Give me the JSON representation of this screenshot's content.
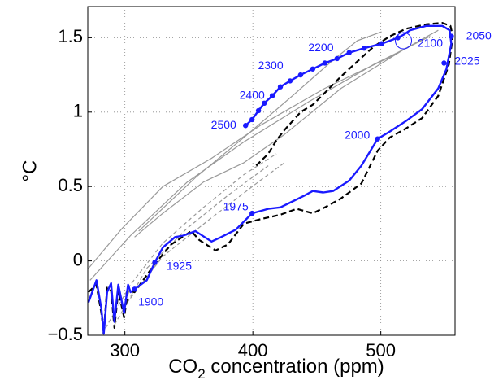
{
  "chart_data": {
    "type": "line",
    "xlabel": {
      "main": "CO",
      "sub": "2",
      "rest": " concentration (ppm)"
    },
    "ylabel": "°C",
    "xlim": [
      271,
      558
    ],
    "ylim": [
      -0.5,
      1.71
    ],
    "xticks": [
      300,
      400,
      500
    ],
    "yticks": [
      {
        "value": -0.5,
        "label": "−0.5"
      },
      0,
      0.5,
      1,
      1.5
    ],
    "grid": true,
    "series": [
      {
        "color": "#999999",
        "dash": false,
        "width": 1.2,
        "x": [
          271.5,
          298,
          329.7,
          367.7,
          405.7,
          456.3,
          507,
          544.9
        ],
        "y": [
          -0.05,
          0.22,
          0.5,
          0.69,
          0.91,
          1.16,
          1.37,
          1.55
        ]
      },
      {
        "color": "#999999",
        "dash": false,
        "width": 1.2,
        "x": [
          272.8,
          304.4,
          348.7,
          393,
          443.7,
          494.3,
          538.6
        ],
        "y": [
          -0.13,
          0.17,
          0.53,
          0.8,
          1.07,
          1.32,
          1.51
        ]
      },
      {
        "color": "#999999",
        "dash": false,
        "width": 1.2,
        "x": [
          310.8,
          355.1,
          393,
          431,
          462.7,
          481.6,
          500.6
        ],
        "y": [
          0.2,
          0.56,
          0.83,
          1.11,
          1.35,
          1.48,
          1.54
        ]
      },
      {
        "color": "#999999",
        "dash": false,
        "width": 1.2,
        "x": [
          307.6,
          329.7,
          361.4,
          393,
          424.7,
          469,
          519.6
        ],
        "y": [
          0.16,
          0.32,
          0.53,
          0.66,
          0.85,
          1.16,
          1.43
        ]
      },
      {
        "color": "#999999",
        "dash": true,
        "width": 1.2,
        "x": [
          282.3,
          304.4,
          329.7,
          361.4,
          393,
          418.4
        ],
        "y": [
          -0.49,
          -0.16,
          0.12,
          0.36,
          0.58,
          0.72
        ]
      },
      {
        "color": "#999999",
        "dash": true,
        "width": 1.2,
        "x": [
          291.8,
          317.1,
          348.7,
          380.4,
          412
        ],
        "y": [
          -0.43,
          -0.05,
          0.22,
          0.44,
          0.64
        ]
      },
      {
        "color": "#999999",
        "dash": true,
        "width": 1.2,
        "x": [
          298.1,
          329.7,
          367.7,
          405.7,
          424.7
        ],
        "y": [
          -0.32,
          0.03,
          0.29,
          0.54,
          0.66
        ]
      },
      {
        "color": "#000000",
        "dash": true,
        "width": 2.2,
        "x": [
          271.5,
          277.8,
          281.6,
          283.5,
          286.1,
          289.2,
          291.8,
          294.9,
          299.4,
          302.5,
          307.6,
          323.4,
          336.1,
          351.9,
          358.2,
          370.9,
          380.4,
          393.0,
          405.7,
          421.5,
          434.2,
          446.8,
          456.3,
          468.9,
          484.8,
          497.5,
          507.0,
          519.6,
          532.3,
          544.9,
          553.2,
          556.3,
          554.4,
          548.1,
          535.4,
          519.6,
          507.0,
          494.3,
          481.6,
          468.9,
          456.3,
          446.8,
          437.3,
          431.0,
          424.7,
          418.4,
          412.0,
          402.5
        ],
        "y": [
          -0.21,
          -0.16,
          -0.35,
          -0.48,
          -0.18,
          -0.2,
          -0.45,
          -0.2,
          -0.38,
          -0.2,
          -0.21,
          -0.02,
          0.11,
          0.2,
          0.14,
          0.07,
          0.11,
          0.25,
          0.28,
          0.31,
          0.35,
          0.32,
          0.36,
          0.42,
          0.52,
          0.74,
          0.83,
          0.89,
          0.96,
          1.11,
          1.32,
          1.51,
          1.58,
          1.6,
          1.59,
          1.56,
          1.51,
          1.44,
          1.34,
          1.24,
          1.13,
          1.05,
          1.0,
          0.94,
          0.88,
          0.81,
          0.72,
          0.64
        ]
      },
      {
        "color": "#1a1aff",
        "dash": false,
        "width": 2.4,
        "x": [
          271.5,
          277.8,
          281.6,
          283.5,
          286.1,
          289.2,
          291.8,
          294.9,
          299.4,
          302.5,
          304.4,
          307.6,
          317.1,
          323.4,
          329.7,
          339.2,
          345.6,
          355.1,
          367.7,
          375.2,
          386.7,
          399.4,
          412.0,
          421.5,
          431.0,
          440.5,
          446.8,
          455.1,
          462.7,
          475.3,
          484.8,
          497.5,
          507.0,
          519.6,
          532.3,
          544.9,
          551.3,
          555.1,
          553.8,
          548.1,
          535.4,
          522.8,
          517.7,
          513.3,
          500.6,
          487.0,
          475.3,
          465.8,
          456.3,
          446.8,
          437.3,
          429.1,
          421.5,
          415.2,
          408.9,
          404.4,
          399.4,
          394.3
        ],
        "y": [
          -0.28,
          -0.13,
          -0.32,
          -0.49,
          -0.21,
          -0.15,
          -0.41,
          -0.16,
          -0.35,
          -0.16,
          -0.21,
          -0.19,
          -0.13,
          -0.01,
          0.09,
          0.16,
          0.17,
          0.2,
          0.13,
          0.16,
          0.21,
          0.32,
          0.35,
          0.36,
          0.4,
          0.44,
          0.47,
          0.46,
          0.47,
          0.54,
          0.64,
          0.82,
          0.87,
          0.94,
          1.02,
          1.16,
          1.29,
          1.46,
          1.55,
          1.58,
          1.58,
          1.55,
          1.52,
          1.5,
          1.46,
          1.43,
          1.4,
          1.36,
          1.33,
          1.29,
          1.25,
          1.21,
          1.17,
          1.11,
          1.06,
          1.01,
          0.95,
          0.91
        ]
      },
      {
        "color": "#1a1aff",
        "marker": "dot",
        "x": [
          307.6,
          323.4,
          399.4,
          497.5,
          549.4,
          555.1,
          513.3,
          500.6,
          487.0,
          475.3,
          465.8,
          456.3,
          446.8,
          437.3,
          429.1,
          421.5,
          415.2,
          408.9,
          404.4,
          399.4,
          394.3
        ],
        "y": [
          -0.19,
          -0.01,
          0.32,
          0.82,
          1.33,
          1.51,
          1.5,
          1.46,
          1.43,
          1.4,
          1.36,
          1.33,
          1.29,
          1.25,
          1.21,
          1.17,
          1.11,
          1.06,
          1.01,
          0.95,
          0.91
        ]
      },
      {
        "color": "#1a1aff",
        "marker": "circle",
        "x": [
          517.7
        ],
        "y": [
          1.48
        ]
      }
    ],
    "annotations": [
      {
        "text": "1900",
        "x": 320.3,
        "y": -0.28
      },
      {
        "text": "1925",
        "x": 342.4,
        "y": -0.04
      },
      {
        "text": "1975",
        "x": 386.7,
        "y": 0.36
      },
      {
        "text": "2000",
        "x": 481.6,
        "y": 0.84
      },
      {
        "text": "2025",
        "x": 567.5,
        "y": 1.34
      },
      {
        "text": "2050",
        "x": 576.6,
        "y": 1.51
      },
      {
        "text": "2100",
        "x": 538.6,
        "y": 1.46
      },
      {
        "text": "2200",
        "x": 453.2,
        "y": 1.43
      },
      {
        "text": "2300",
        "x": 413.9,
        "y": 1.31
      },
      {
        "text": "2400",
        "x": 399.4,
        "y": 1.11
      },
      {
        "text": "2500",
        "x": 377.2,
        "y": 0.91
      }
    ]
  }
}
